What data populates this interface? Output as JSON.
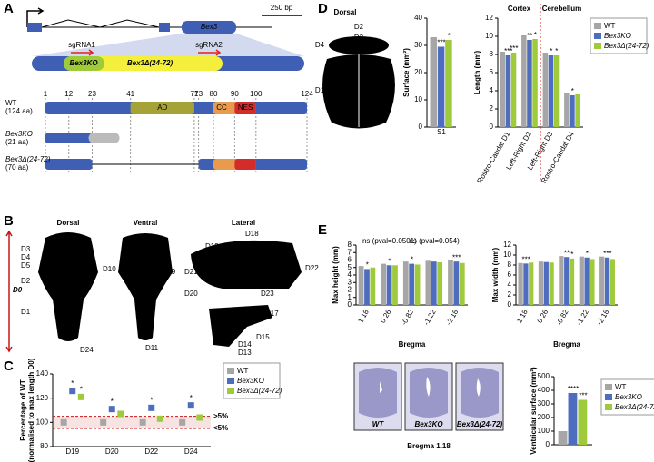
{
  "panels": [
    "A",
    "B",
    "C",
    "D",
    "E"
  ],
  "gene": {
    "scale": "250 bp",
    "gene": "Bex3",
    "sgrna": [
      "sgRNA1",
      "sgRNA2"
    ],
    "alleles": [
      "Bex3KO",
      "Bex3Δ(24-72)"
    ],
    "positions": [
      1,
      12,
      23,
      41,
      71,
      73,
      80,
      90,
      100,
      124
    ],
    "domains": [
      "AD",
      "CC",
      "NES"
    ],
    "proteins": [
      {
        "name": "WT",
        "length": "(124 aa)"
      },
      {
        "name": "Bex3KO",
        "length": "(21 aa)"
      },
      {
        "name": "Bex3Δ(24-72)",
        "length": "(70 aa)"
      }
    ]
  },
  "skull": {
    "views": [
      "Dorsal",
      "Ventral",
      "Lateral"
    ],
    "labels": [
      "D0",
      "D8",
      "D3",
      "D4",
      "D5",
      "D2",
      "D1",
      "D6",
      "D7",
      "D24",
      "D10",
      "D9",
      "D11",
      "D18",
      "D19",
      "D21",
      "D20",
      "D22",
      "D23",
      "D17",
      "D16",
      "D15",
      "D14",
      "D13"
    ]
  },
  "brain": {
    "view": "Dorsal",
    "labels": [
      "D2",
      "D3",
      "D4",
      "D1",
      "S1"
    ]
  },
  "sections": {
    "labels": [
      "WT",
      "Bex3KO",
      "Bex3Δ(24-72)"
    ],
    "caption": "Bregma 1.18"
  },
  "chart_data": [
    {
      "type": "dot",
      "categories": [
        "D19",
        "D20",
        "D22",
        "D24"
      ],
      "y_label": [
        "Percentage of WT",
        "(normalised to max length D0)"
      ],
      "ylim": [
        80,
        140
      ],
      "yticks": [
        80,
        100,
        120,
        140
      ],
      "thresholds": [
        {
          "value": 105,
          "label": ">5%"
        },
        {
          "value": 95,
          "label": "<5%"
        }
      ],
      "legend": true,
      "series": [
        {
          "name": "WT",
          "color": "#a6a6a6",
          "values": [
            100,
            100,
            100,
            100
          ],
          "stars": [
            null,
            null,
            null,
            null
          ]
        },
        {
          "name": "Bex3KO",
          "color": "#4f6dbf",
          "values": [
            126,
            111,
            112,
            114
          ],
          "stars": [
            "*",
            "*",
            "*",
            "*"
          ]
        },
        {
          "name": "Bex3Δ(24-72)",
          "color": "#9fca3c",
          "values": [
            121,
            107,
            103,
            104
          ],
          "stars": [
            "*",
            null,
            null,
            null
          ]
        }
      ]
    },
    {
      "type": "bar",
      "categories": [
        "S1"
      ],
      "y_label": "Surface (mm²)",
      "ylim": [
        0,
        40
      ],
      "yticks": [
        0,
        10,
        20,
        30,
        40
      ],
      "legend": false,
      "series": [
        {
          "name": "WT",
          "color": "#a6a6a6",
          "values": [
            33
          ],
          "stars": [
            null
          ]
        },
        {
          "name": "Bex3KO",
          "color": "#4f6dbf",
          "values": [
            29.5
          ],
          "stars": [
            "***"
          ]
        },
        {
          "name": "Bex3Δ(24-72)",
          "color": "#9fca3c",
          "values": [
            32
          ],
          "stars": [
            "*"
          ]
        }
      ]
    },
    {
      "type": "bar",
      "categories": [
        "Rostro-Caudal D1",
        "Left-Right D2",
        "Left-Right D3",
        "Rostro-Caudal D4"
      ],
      "groups": [
        "Cortex",
        "Cerebellum"
      ],
      "y_label": "Length (mm)",
      "ylim": [
        0,
        12
      ],
      "yticks": [
        0,
        2,
        4,
        6,
        8,
        10,
        12
      ],
      "legend": true,
      "series": [
        {
          "name": "WT",
          "color": "#a6a6a6",
          "values": [
            8.3,
            10.1,
            8.2,
            3.8
          ],
          "stars": [
            null,
            null,
            null,
            null
          ]
        },
        {
          "name": "Bex3KO",
          "color": "#4f6dbf",
          "values": [
            7.9,
            9.6,
            7.9,
            3.5
          ],
          "stars": [
            "***",
            "**",
            "*",
            "*"
          ]
        },
        {
          "name": "Bex3Δ(24-72)",
          "color": "#9fca3c",
          "values": [
            8.2,
            9.7,
            7.9,
            3.6
          ],
          "stars": [
            "***",
            "*",
            "*",
            null
          ]
        }
      ]
    },
    {
      "type": "bar",
      "categories": [
        "1.18",
        "0.26",
        "-0.82",
        "-1.22",
        "-2.18"
      ],
      "x_label": "Bregma",
      "y_label": "Max height (mm)",
      "ylim": [
        0,
        8
      ],
      "yticks": [
        0,
        1,
        2,
        3,
        4,
        5,
        6,
        7,
        8
      ],
      "notes": [
        "ns (pval=0.0501)",
        "ns (pval=0.054)"
      ],
      "legend": false,
      "series": [
        {
          "name": "WT",
          "color": "#a6a6a6",
          "values": [
            5.2,
            5.5,
            5.8,
            5.9,
            6.0
          ],
          "stars": [
            null,
            null,
            null,
            null,
            null
          ]
        },
        {
          "name": "Bex3KO",
          "color": "#4f6dbf",
          "values": [
            4.8,
            5.3,
            5.5,
            5.8,
            5.8
          ],
          "stars": [
            "*",
            "*",
            "*",
            null,
            "***"
          ]
        },
        {
          "name": "Bex3Δ(24-72)",
          "color": "#9fca3c",
          "values": [
            5.0,
            5.3,
            5.4,
            5.7,
            5.6
          ],
          "stars": [
            null,
            null,
            null,
            null,
            null
          ]
        }
      ]
    },
    {
      "type": "bar",
      "categories": [
        "1.18",
        "0.26",
        "-0.82",
        "-1.22",
        "-2.18"
      ],
      "x_label": "Bregma",
      "y_label": "Max width (mm)",
      "ylim": [
        0,
        12
      ],
      "yticks": [
        0,
        2,
        4,
        6,
        8,
        10,
        12
      ],
      "legend": false,
      "series": [
        {
          "name": "WT",
          "color": "#a6a6a6",
          "values": [
            8.4,
            8.7,
            9.8,
            9.7,
            9.7
          ],
          "stars": [
            null,
            null,
            null,
            null,
            null
          ]
        },
        {
          "name": "Bex3KO",
          "color": "#4f6dbf",
          "values": [
            8.3,
            8.6,
            9.6,
            9.5,
            9.5
          ],
          "stars": [
            "***",
            null,
            "**",
            "*",
            "***"
          ]
        },
        {
          "name": "Bex3Δ(24-72)",
          "color": "#9fca3c",
          "values": [
            8.5,
            8.5,
            9.3,
            9.2,
            9.2
          ],
          "stars": [
            null,
            null,
            "*",
            null,
            null
          ]
        }
      ]
    },
    {
      "type": "bar",
      "categories": [
        null
      ],
      "y_label": "Ventricular surface (mm²)",
      "ylim": [
        0,
        500
      ],
      "yticks": [
        0,
        100,
        200,
        300,
        400,
        500
      ],
      "legend": true,
      "series": [
        {
          "name": "WT",
          "color": "#a6a6a6",
          "values": [
            100
          ],
          "stars": [
            null
          ]
        },
        {
          "name": "Bex3KO",
          "color": "#4f6dbf",
          "values": [
            380
          ],
          "stars": [
            "****"
          ]
        },
        {
          "name": "Bex3Δ(24-72)",
          "color": "#9fca3c",
          "values": [
            330
          ],
          "stars": [
            "***"
          ]
        }
      ]
    }
  ]
}
